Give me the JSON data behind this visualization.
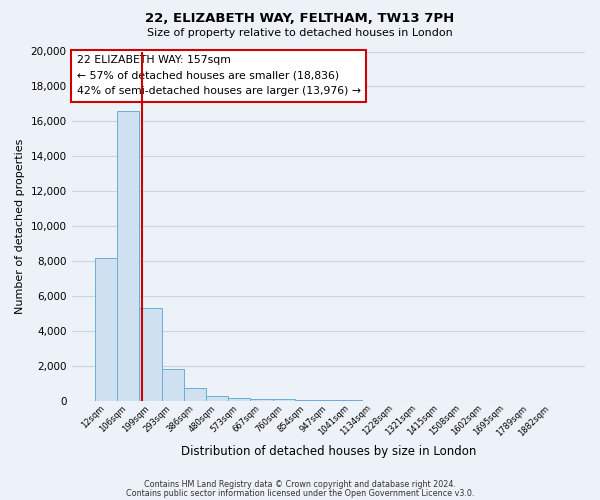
{
  "title1": "22, ELIZABETH WAY, FELTHAM, TW13 7PH",
  "title2": "Size of property relative to detached houses in London",
  "xlabel": "Distribution of detached houses by size in London",
  "ylabel": "Number of detached properties",
  "bar_labels": [
    "12sqm",
    "106sqm",
    "199sqm",
    "293sqm",
    "386sqm",
    "480sqm",
    "573sqm",
    "667sqm",
    "760sqm",
    "854sqm",
    "947sqm",
    "1041sqm",
    "1134sqm",
    "1228sqm",
    "1321sqm",
    "1415sqm",
    "1508sqm",
    "1602sqm",
    "1695sqm",
    "1789sqm",
    "1882sqm"
  ],
  "bar_values": [
    8200,
    16600,
    5300,
    1800,
    750,
    280,
    150,
    110,
    80,
    50,
    20,
    15,
    10,
    8,
    6,
    5,
    4,
    3,
    2,
    2,
    2
  ],
  "bar_color": "#cfe0f0",
  "bar_edge_color": "#6aaed6",
  "vline_x": 1.62,
  "vline_color": "#cc0000",
  "vline_lw": 1.5,
  "ylim": [
    0,
    20000
  ],
  "yticks": [
    0,
    2000,
    4000,
    6000,
    8000,
    10000,
    12000,
    14000,
    16000,
    18000,
    20000
  ],
  "annotation_title": "22 ELIZABETH WAY: 157sqm",
  "annotation_line1": "← 57% of detached houses are smaller (18,836)",
  "annotation_line2": "42% of semi-detached houses are larger (13,976) →",
  "footer1": "Contains HM Land Registry data © Crown copyright and database right 2024.",
  "footer2": "Contains public sector information licensed under the Open Government Licence v3.0.",
  "bg_color": "#edf2f9",
  "plot_bg_color": "#edf2f9",
  "grid_color": "#c8d4e8"
}
